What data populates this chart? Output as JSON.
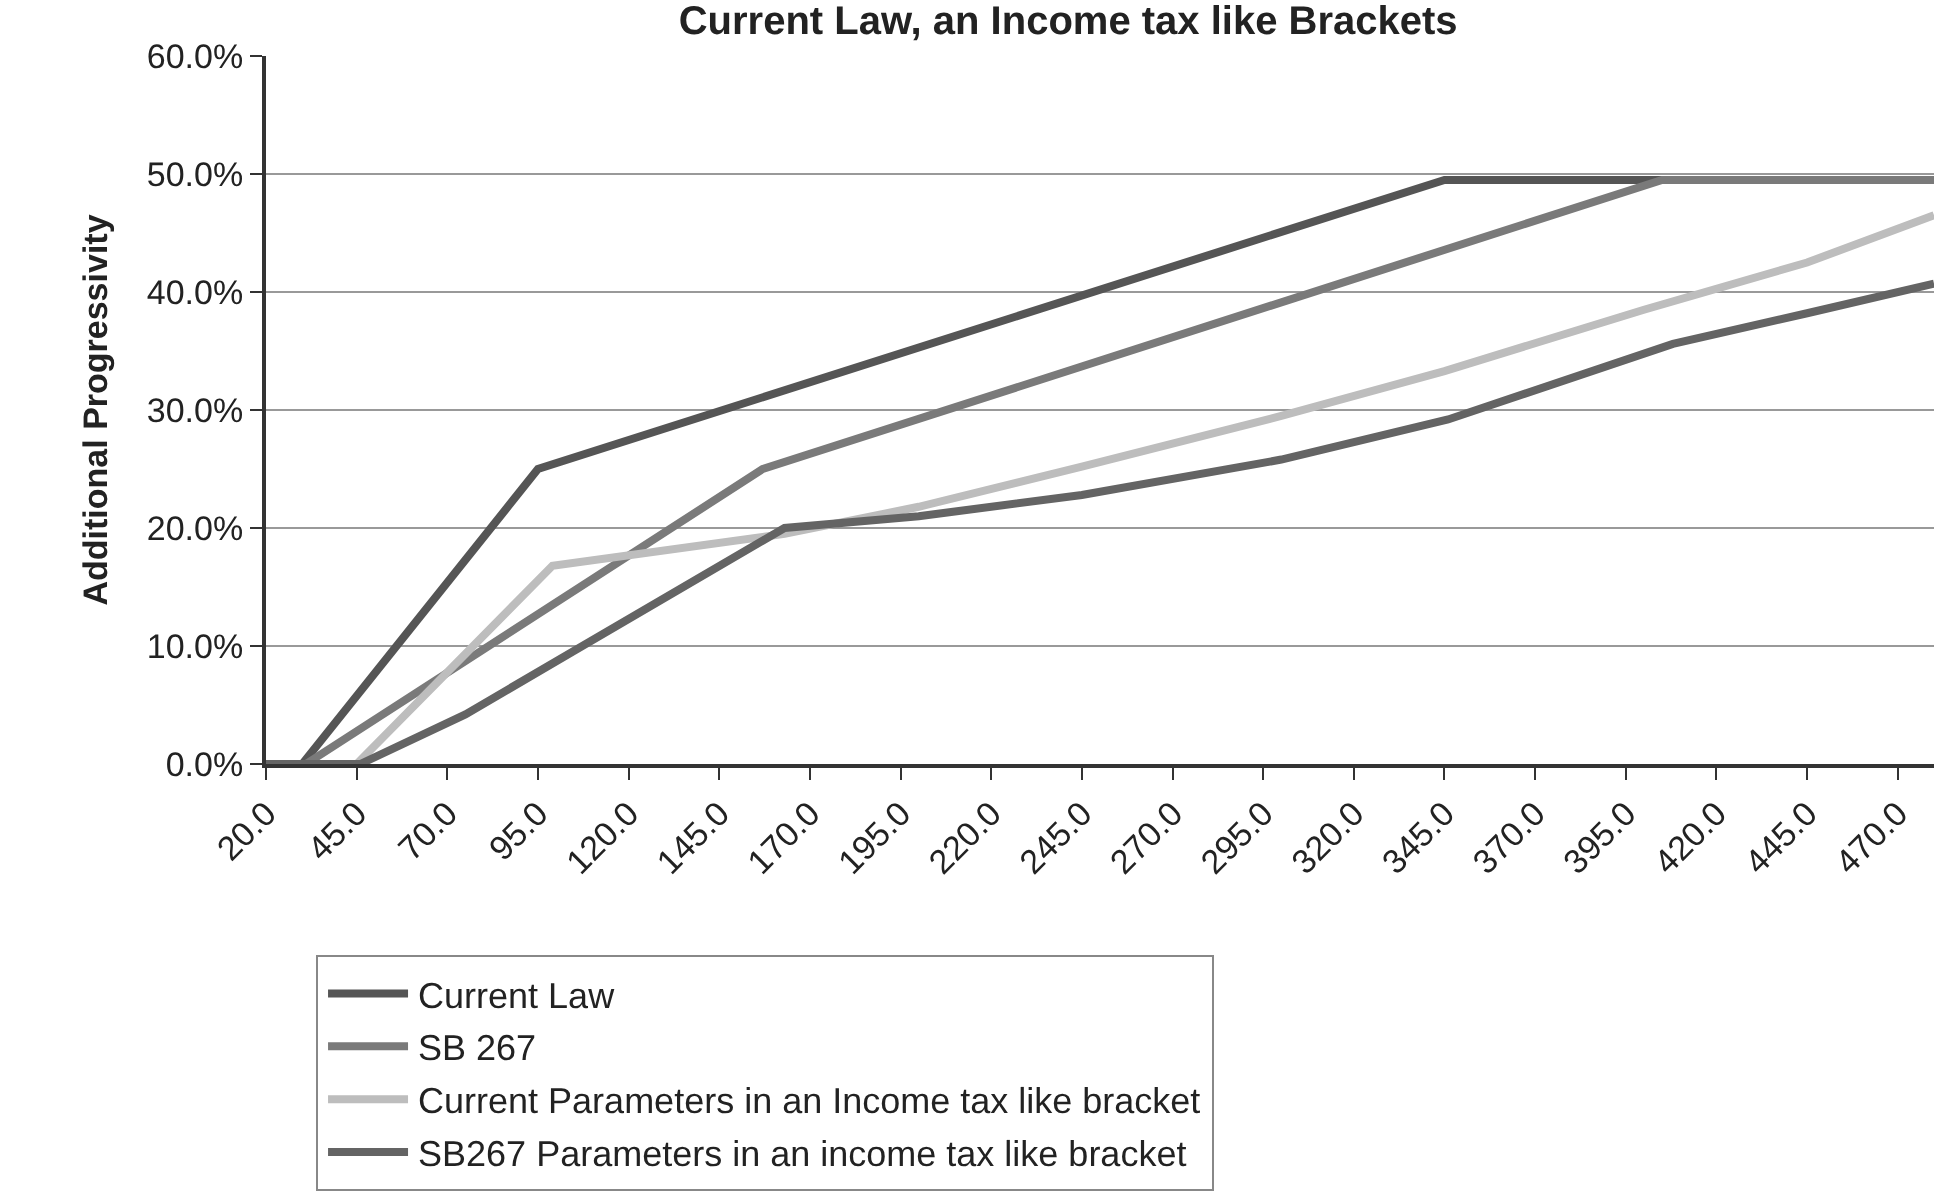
{
  "chart_data": {
    "type": "line",
    "title": "Current Law, an Income tax like Brackets",
    "ylabel": "Additional Progressivity",
    "xlim": [
      20,
      480
    ],
    "xticks": [
      {
        "value": 20,
        "label": "20.0"
      },
      {
        "value": 45,
        "label": "45.0"
      },
      {
        "value": 70,
        "label": "70.0"
      },
      {
        "value": 95,
        "label": "95.0"
      },
      {
        "value": 120,
        "label": "120.0"
      },
      {
        "value": 145,
        "label": "145.0"
      },
      {
        "value": 170,
        "label": "170.0"
      },
      {
        "value": 195,
        "label": "195.0"
      },
      {
        "value": 220,
        "label": "220.0"
      },
      {
        "value": 245,
        "label": "245.0"
      },
      {
        "value": 270,
        "label": "270.0"
      },
      {
        "value": 295,
        "label": "295.0"
      },
      {
        "value": 320,
        "label": "320.0"
      },
      {
        "value": 345,
        "label": "345.0"
      },
      {
        "value": 370,
        "label": "370.0"
      },
      {
        "value": 395,
        "label": "395.0"
      },
      {
        "value": 420,
        "label": "420.0"
      },
      {
        "value": 445,
        "label": "445.0"
      },
      {
        "value": 470,
        "label": "470.0"
      }
    ],
    "ylim": [
      0,
      60
    ],
    "yticks": [
      {
        "value": 0,
        "label": "0.0%"
      },
      {
        "value": 10,
        "label": "10.0%"
      },
      {
        "value": 20,
        "label": "20.0%"
      },
      {
        "value": 30,
        "label": "30.0%"
      },
      {
        "value": 40,
        "label": "40.0%"
      },
      {
        "value": 50,
        "label": "50.0%"
      },
      {
        "value": 60,
        "label": "60.0%"
      }
    ],
    "grid": "y",
    "legend": "bottom",
    "marker": "none",
    "line_style": "solid",
    "series": [
      {
        "name": "Current Law",
        "color": "#555555",
        "x": [
          20,
          30,
          95,
          345,
          480
        ],
        "values": [
          0,
          0,
          25,
          49.5,
          49.5
        ]
      },
      {
        "name": "SB 267",
        "color": "#7a7a7a",
        "x": [
          20,
          31,
          157,
          405,
          480
        ],
        "values": [
          0,
          0,
          25,
          49.5,
          49.5
        ]
      },
      {
        "name": "Current Parameters in an Income tax like bracket",
        "color": "#bdbdbd",
        "x": [
          20,
          45,
          99,
          163,
          200,
          245,
          300,
          345,
          400,
          445,
          480
        ],
        "values": [
          0,
          0,
          16.8,
          19.5,
          21.8,
          25.2,
          29.5,
          33.3,
          38.5,
          42.5,
          46.5
        ]
      },
      {
        "name": "SB267 Parameters in an income tax like bracket",
        "color": "#646464",
        "x": [
          20,
          46,
          75,
          105,
          163,
          200,
          245,
          300,
          346,
          408,
          445,
          480
        ],
        "values": [
          0,
          0,
          4.2,
          9.6,
          20,
          21,
          22.8,
          25.8,
          29.2,
          35.6,
          38.2,
          40.7
        ]
      }
    ]
  }
}
